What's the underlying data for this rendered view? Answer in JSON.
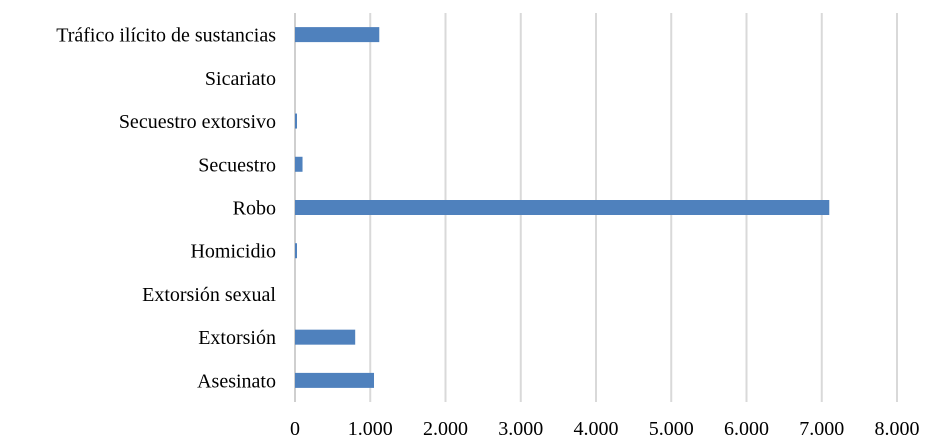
{
  "chart_data": {
    "type": "bar",
    "orientation": "horizontal",
    "categories": [
      "Asesinato",
      "Extorsión",
      "Extorsión sexual",
      "Homicidio",
      "Robo",
      "Secuestro",
      "Secuestro extorsivo",
      "Sicariato",
      "Tráfico ilícito de sustancias"
    ],
    "values": [
      1050,
      800,
      0,
      20,
      7100,
      100,
      15,
      0,
      1120
    ],
    "xlim": [
      0,
      8000
    ],
    "xticks": [
      0,
      1000,
      2000,
      3000,
      4000,
      5000,
      6000,
      7000,
      8000
    ],
    "xtick_labels": [
      "0",
      "1.000",
      "2.000",
      "3.000",
      "4.000",
      "5.000",
      "6.000",
      "7.000",
      "8.000"
    ],
    "grid": true,
    "bar_color": "#4f81bd",
    "grid_color": "#d9d9d9"
  }
}
